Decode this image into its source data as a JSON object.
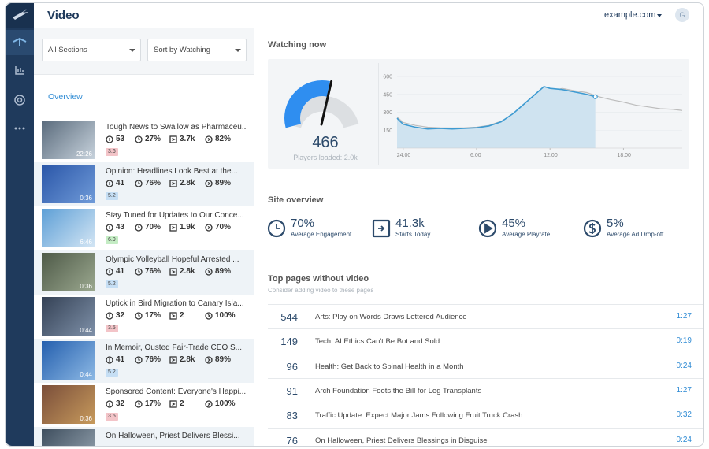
{
  "header": {
    "title": "Video",
    "site": "example.com",
    "avatar": "G"
  },
  "filters": [
    "All Sections",
    "Sort by Watching"
  ],
  "tab": "Overview",
  "videos": [
    {
      "title": "Tough News to Swallow as Pharmaceu...",
      "watching": "53",
      "engagement": "27%",
      "starts": "3.7k",
      "completion": "82%",
      "duration": "22:26",
      "score": "3.6",
      "score_color": "#f3c4c8"
    },
    {
      "title": "Opinion: Headlines Look Best at the...",
      "watching": "41",
      "engagement": "76%",
      "starts": "2.8k",
      "completion": "89%",
      "duration": "0:36",
      "score": "5.2",
      "score_color": "#c5def4"
    },
    {
      "title": "Stay Tuned for Updates to Our Conce...",
      "watching": "43",
      "engagement": "70%",
      "starts": "1.9k",
      "completion": "70%",
      "duration": "6:46",
      "score": "6.9",
      "score_color": "#c4ecc4"
    },
    {
      "title": "Olympic Volleyball Hopeful Arrested ...",
      "watching": "41",
      "engagement": "76%",
      "starts": "2.8k",
      "completion": "89%",
      "duration": "0:36",
      "score": "5.2",
      "score_color": "#c5def4"
    },
    {
      "title": "Uptick in Bird Migration to Canary Isla...",
      "watching": "32",
      "engagement": "17%",
      "starts": "2",
      "completion": "100%",
      "duration": "0:44",
      "score": "3.5",
      "score_color": "#f3c4c8"
    },
    {
      "title": "In Memoir, Ousted Fair-Trade CEO S...",
      "watching": "41",
      "engagement": "76%",
      "starts": "2.8k",
      "completion": "89%",
      "duration": "0:44",
      "score": "5.2",
      "score_color": "#c5def4"
    },
    {
      "title": "Sponsored Content: Everyone's Happi...",
      "watching": "32",
      "engagement": "17%",
      "starts": "2",
      "completion": "100%",
      "duration": "0:36",
      "score": "3.5",
      "score_color": "#f3c4c8"
    },
    {
      "title": "On Halloween, Priest Delivers Blessi..."
    }
  ],
  "watching_now": {
    "title": "Watching now",
    "value": 466,
    "players_loaded": "Players loaded: 2.0k",
    "chart": {
      "type": "area",
      "xlim": [
        -0.5,
        22.8
      ],
      "ylim": [
        0,
        620
      ],
      "yticks": [
        150,
        300,
        450,
        600
      ],
      "xticks": [
        {
          "value": 0,
          "label": "24:00"
        },
        {
          "value": 6,
          "label": "6:00"
        },
        {
          "value": 12,
          "label": "12:00"
        },
        {
          "value": 18,
          "label": "18:00"
        }
      ],
      "series": [
        {
          "color": "#bdbdbd",
          "x": [
            -0.5,
            0,
            1,
            2,
            3,
            4,
            5,
            6,
            7,
            8,
            9,
            10,
            11,
            12,
            13,
            14,
            15,
            16,
            17,
            18,
            19,
            20,
            21,
            22,
            22.8
          ],
          "values": [
            260,
            215,
            190,
            175,
            170,
            168,
            170,
            175,
            190,
            225,
            280,
            350,
            420,
            475,
            500,
            480,
            465,
            430,
            405,
            385,
            360,
            345,
            330,
            325,
            315
          ]
        },
        {
          "color": "#3d9ad1",
          "fill": "#cfe3f0",
          "x": [
            -0.5,
            0,
            1,
            2,
            3,
            4,
            5,
            6,
            7,
            8,
            9,
            10,
            11,
            11.5,
            12,
            13,
            14,
            15,
            15.7
          ],
          "values": [
            250,
            200,
            175,
            160,
            165,
            160,
            165,
            170,
            185,
            220,
            290,
            380,
            470,
            515,
            500,
            490,
            470,
            450,
            430
          ]
        }
      ]
    }
  },
  "site_overview": {
    "title": "Site overview",
    "metrics": [
      {
        "value": "70%",
        "label": "Average Engagement"
      },
      {
        "value": "41.3k",
        "label": "Starts Today"
      },
      {
        "value": "45%",
        "label": "Average Playrate"
      },
      {
        "value": "5%",
        "label": "Average Ad Drop-off"
      }
    ]
  },
  "top_pages": {
    "title": "Top pages without video",
    "subtitle": "Consider adding video to these pages",
    "rows": [
      {
        "count": 544,
        "title": "Arts: Play on Words Draws Lettered Audience",
        "duration": "1:27"
      },
      {
        "count": 149,
        "title": "Tech: AI Ethics Can't Be Bot and Sold",
        "duration": "0:19"
      },
      {
        "count": 96,
        "title": "Health: Get Back to Spinal Health in a Month",
        "duration": "0:24"
      },
      {
        "count": 91,
        "title": "Arch Foundation Foots the Bill for Leg Transplants",
        "duration": "1:27"
      },
      {
        "count": 83,
        "title": "Traffic Update: Expect Major Jams Following Fruit Truck Crash",
        "duration": "0:32"
      },
      {
        "count": 76,
        "title": "On Halloween, Priest Delivers Blessings in Disguise",
        "duration": "0:24"
      }
    ]
  }
}
